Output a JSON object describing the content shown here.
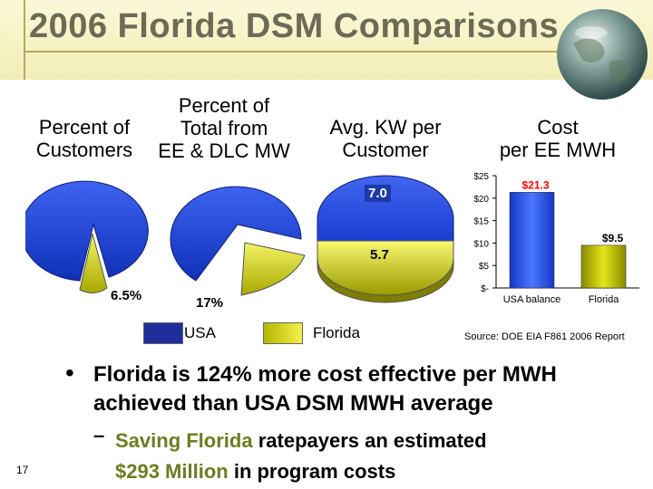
{
  "title": "2006 Florida DSM Comparisons",
  "headers": {
    "customers": [
      "Percent of",
      "Customers"
    ],
    "total": [
      "Percent of",
      "Total from",
      "EE & DLC MW"
    ],
    "kw": [
      "Avg. KW per",
      "Customer"
    ],
    "cost": [
      "Cost",
      "per EE MWH"
    ]
  },
  "colors": {
    "usa": "#1f45d6",
    "florida": "#dede10",
    "title": "#6d6a56",
    "green_text": "#6b7d22",
    "red_label": "#ff0000"
  },
  "legend": {
    "usa": "USA",
    "florida": "Florida"
  },
  "source": "Source: DOE EIA F861 2006 Report",
  "bullet": "Florida is 124% more cost effective per MWH achieved than USA DSM MWH average",
  "sub_bullet": {
    "dash": "–",
    "part1": "Saving Florida",
    "part2": " ratepayers an estimated",
    "part3": "$293 Million",
    "part4": " in program costs"
  },
  "page_number": "17",
  "chart_data": [
    {
      "type": "pie",
      "title": "Percent of Customers",
      "series": [
        {
          "name": "USA",
          "value": 93.5
        },
        {
          "name": "Florida",
          "value": 6.5,
          "label": "6.5%"
        }
      ]
    },
    {
      "type": "pie",
      "title": "Percent of Total from EE & DLC MW",
      "series": [
        {
          "name": "USA",
          "value": 83
        },
        {
          "name": "Florida",
          "value": 17,
          "label": "17%"
        }
      ]
    },
    {
      "type": "pie",
      "title": "Avg. KW per Customer",
      "series": [
        {
          "name": "USA",
          "value": 7.0,
          "label": "7.0"
        },
        {
          "name": "Florida",
          "value": 5.7,
          "label": "5.7"
        }
      ]
    },
    {
      "type": "bar",
      "title": "Cost per EE MWH",
      "categories": [
        "USA balance",
        "Florida"
      ],
      "values": [
        21.3,
        9.5
      ],
      "labels": [
        "$21.3",
        "$9.5"
      ],
      "yticks": [
        "$25",
        "$20",
        "$15",
        "$10",
        "$5",
        "$-"
      ],
      "ylim": [
        0,
        25
      ]
    }
  ]
}
